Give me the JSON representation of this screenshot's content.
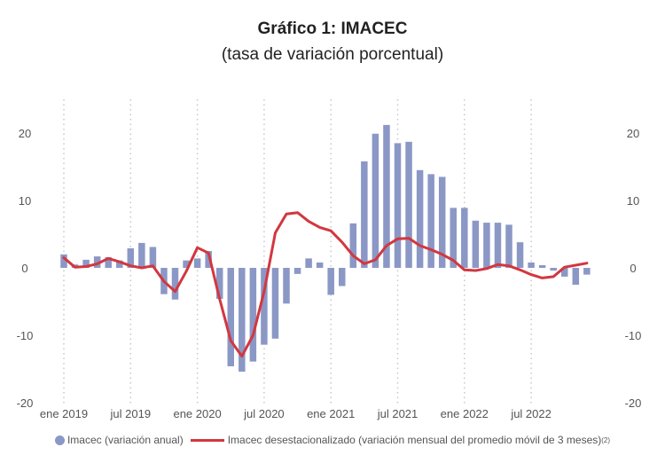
{
  "header": {
    "title": "Gráfico 1:  IMACEC",
    "subtitle": "(tasa de variación porcentual)"
  },
  "legend": {
    "bars_label": "Imacec (variación anual)",
    "line_label": "Imacec desestacionalizado (variación mensual del promedio móvil de 3 meses)",
    "line_note": "(2)"
  },
  "colors": {
    "bars": "#8b98c6",
    "line": "#d2373f",
    "gridline": "#c8c8c8"
  },
  "chart_data": {
    "type": "bar",
    "x_tick_labels": [
      "ene 2019",
      "jul 2019",
      "ene 2020",
      "jul 2020",
      "ene 2021",
      "jul 2021",
      "ene 2022",
      "jul 2022"
    ],
    "y_ticks_left": [
      "20",
      "10",
      "0",
      "-10",
      "-20"
    ],
    "y_ticks_right": [
      "20",
      "10",
      "0",
      "-10",
      "-20"
    ],
    "ylim": [
      -20,
      23
    ],
    "grid": "vertical dotted at January and July",
    "legend_position": "bottom",
    "categories": [
      "2019-01",
      "2019-02",
      "2019-03",
      "2019-04",
      "2019-05",
      "2019-06",
      "2019-07",
      "2019-08",
      "2019-09",
      "2019-10",
      "2019-11",
      "2019-12",
      "2020-01",
      "2020-02",
      "2020-03",
      "2020-04",
      "2020-05",
      "2020-06",
      "2020-07",
      "2020-08",
      "2020-09",
      "2020-10",
      "2020-11",
      "2020-12",
      "2021-01",
      "2021-02",
      "2021-03",
      "2021-04",
      "2021-05",
      "2021-06",
      "2021-07",
      "2021-08",
      "2021-09",
      "2021-10",
      "2021-11",
      "2021-12",
      "2022-01",
      "2022-02",
      "2022-03",
      "2022-04",
      "2022-05",
      "2022-06",
      "2022-07",
      "2022-08",
      "2022-09",
      "2022-10",
      "2022-11",
      "2022-12"
    ],
    "series": [
      {
        "name": "Imacec (variación anual)",
        "type": "bar",
        "values": [
          2.0,
          0.5,
          1.2,
          1.7,
          1.6,
          1.1,
          2.9,
          3.7,
          3.1,
          -3.9,
          -4.7,
          1.1,
          1.4,
          2.5,
          -4.6,
          -14.6,
          -15.4,
          -13.9,
          -11.4,
          -10.5,
          -5.3,
          -0.9,
          1.4,
          0.8,
          -4.0,
          -2.7,
          6.6,
          15.8,
          19.9,
          21.2,
          18.5,
          18.7,
          14.5,
          13.9,
          13.5,
          8.9,
          8.9,
          7.0,
          6.7,
          6.7,
          6.4,
          3.8,
          0.8,
          0.4,
          -0.4,
          -1.3,
          -2.5,
          -1.0
        ]
      },
      {
        "name": "Imacec desestacionalizado (variación mensual del promedio móvil de 3 meses)",
        "type": "line",
        "values": [
          1.5,
          0.1,
          0.2,
          0.6,
          1.4,
          0.9,
          0.3,
          0.0,
          0.3,
          -2.0,
          -3.5,
          -0.5,
          3.0,
          2.2,
          -4.6,
          -10.8,
          -13.1,
          -10.0,
          -3.5,
          5.2,
          8.0,
          8.2,
          6.9,
          6.0,
          5.5,
          3.8,
          1.8,
          0.6,
          1.2,
          3.3,
          4.3,
          4.4,
          3.3,
          2.7,
          2.0,
          1.1,
          -0.3,
          -0.4,
          -0.1,
          0.5,
          0.3,
          -0.3,
          -1.0,
          -1.5,
          -1.3,
          0.1,
          0.4,
          0.7
        ]
      }
    ]
  }
}
